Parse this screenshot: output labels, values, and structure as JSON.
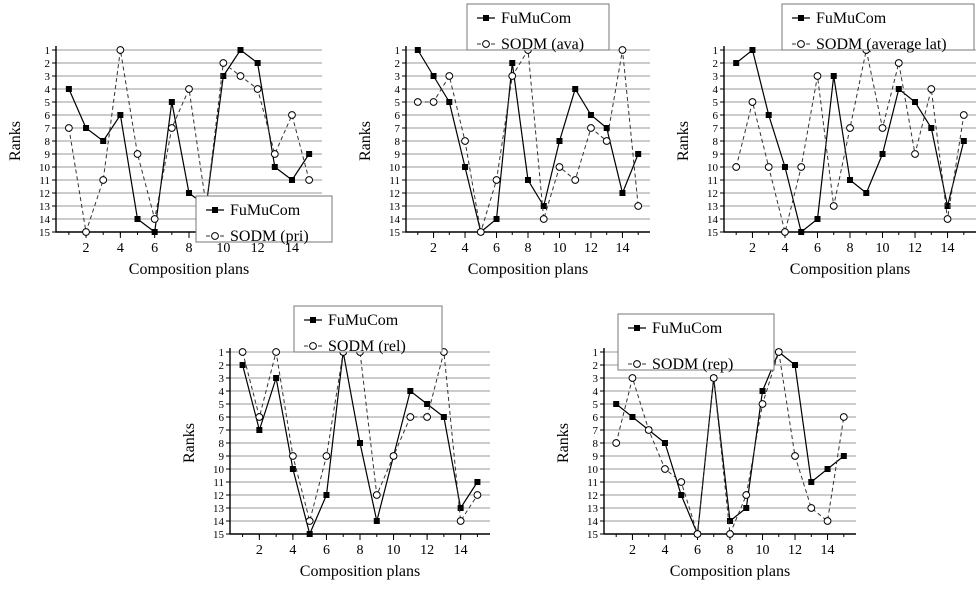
{
  "chart_data": [
    {
      "type": "line",
      "xlabel": "Composition plans",
      "ylabel": "Ranks",
      "x": [
        1,
        2,
        3,
        4,
        5,
        6,
        7,
        8,
        9,
        10,
        11,
        12,
        13,
        14,
        15
      ],
      "xticks": [
        2,
        4,
        6,
        8,
        10,
        12,
        14
      ],
      "yticks": [
        1,
        2,
        3,
        4,
        5,
        6,
        7,
        8,
        9,
        10,
        11,
        12,
        13,
        14,
        15
      ],
      "ylim": [
        15,
        1
      ],
      "y_inverted": true,
      "grid": "horizontal",
      "legend_position": "bottom-right",
      "series": [
        {
          "name": "FuMuCom",
          "marker": "filled-square",
          "line": "solid",
          "values": [
            4,
            7,
            8,
            6,
            14,
            15,
            5,
            12,
            13,
            3,
            1,
            2,
            10,
            11,
            9
          ]
        },
        {
          "name": "SODM (pri)",
          "marker": "open-circle",
          "line": "dashed",
          "values": [
            7,
            15,
            11,
            1,
            9,
            14,
            7,
            4,
            13,
            2,
            3,
            4,
            9,
            6,
            11
          ]
        }
      ]
    },
    {
      "type": "line",
      "xlabel": "Composition plans",
      "ylabel": "Ranks",
      "x": [
        1,
        2,
        3,
        4,
        5,
        6,
        7,
        8,
        9,
        10,
        11,
        12,
        13,
        14,
        15
      ],
      "xticks": [
        2,
        4,
        6,
        8,
        10,
        12,
        14
      ],
      "yticks": [
        1,
        2,
        3,
        4,
        5,
        6,
        7,
        8,
        9,
        10,
        11,
        12,
        13,
        14,
        15
      ],
      "ylim": [
        15,
        1
      ],
      "y_inverted": true,
      "grid": "horizontal",
      "legend_position": "top-left",
      "series": [
        {
          "name": "FuMuCom",
          "marker": "filled-square",
          "line": "solid",
          "values": [
            1,
            3,
            5,
            10,
            15,
            14,
            2,
            11,
            13,
            8,
            4,
            6,
            7,
            12,
            9
          ]
        },
        {
          "name": "SODM (ava)",
          "marker": "open-circle",
          "line": "dashed",
          "values": [
            5,
            5,
            3,
            8,
            15,
            11,
            3,
            1,
            14,
            10,
            11,
            7,
            8,
            1,
            13
          ]
        }
      ]
    },
    {
      "type": "line",
      "xlabel": "Composition plans",
      "ylabel": "Ranks",
      "x": [
        1,
        2,
        3,
        4,
        5,
        6,
        7,
        8,
        9,
        10,
        11,
        12,
        13,
        14,
        15
      ],
      "xticks": [
        2,
        4,
        6,
        8,
        10,
        12,
        14
      ],
      "yticks": [
        1,
        2,
        3,
        4,
        5,
        6,
        7,
        8,
        9,
        10,
        11,
        12,
        13,
        14,
        15
      ],
      "ylim": [
        15,
        1
      ],
      "y_inverted": true,
      "grid": "horizontal",
      "legend_position": "top-right",
      "series": [
        {
          "name": "FuMuCom",
          "marker": "filled-square",
          "line": "solid",
          "values": [
            2,
            1,
            6,
            10,
            15,
            14,
            3,
            11,
            12,
            9,
            4,
            5,
            7,
            13,
            8
          ]
        },
        {
          "name": "SODM (average lat)",
          "marker": "open-circle",
          "line": "dashed",
          "values": [
            10,
            5,
            10,
            15,
            10,
            3,
            13,
            7,
            1,
            7,
            2,
            9,
            4,
            14,
            6
          ]
        }
      ]
    },
    {
      "type": "line",
      "xlabel": "Composition plans",
      "ylabel": "Ranks",
      "x": [
        1,
        2,
        3,
        4,
        5,
        6,
        7,
        8,
        9,
        10,
        11,
        12,
        13,
        14,
        15
      ],
      "xticks": [
        2,
        4,
        6,
        8,
        10,
        12,
        14
      ],
      "yticks": [
        1,
        2,
        3,
        4,
        5,
        6,
        7,
        8,
        9,
        10,
        11,
        12,
        13,
        14,
        15
      ],
      "ylim": [
        15,
        1
      ],
      "y_inverted": true,
      "grid": "horizontal",
      "legend_position": "top-left",
      "series": [
        {
          "name": "FuMuCom",
          "marker": "filled-square",
          "line": "solid",
          "values": [
            2,
            7,
            3,
            10,
            15,
            12,
            1,
            8,
            14,
            9,
            4,
            5,
            6,
            13,
            11
          ]
        },
        {
          "name": "SODM (rel)",
          "marker": "open-circle",
          "line": "dashed",
          "values": [
            1,
            6,
            1,
            9,
            14,
            9,
            1,
            1,
            12,
            9,
            6,
            6,
            1,
            14,
            12
          ]
        }
      ]
    },
    {
      "type": "line",
      "xlabel": "Composition plans",
      "ylabel": "Ranks",
      "x": [
        1,
        2,
        3,
        4,
        5,
        6,
        7,
        8,
        9,
        10,
        11,
        12,
        13,
        14,
        15
      ],
      "xticks": [
        2,
        4,
        6,
        8,
        10,
        12,
        14
      ],
      "yticks": [
        1,
        2,
        3,
        4,
        5,
        6,
        7,
        8,
        9,
        10,
        11,
        12,
        13,
        14,
        15
      ],
      "ylim": [
        15,
        1
      ],
      "y_inverted": true,
      "grid": "horizontal",
      "legend_position": "top-left",
      "series": [
        {
          "name": "FuMuCom",
          "marker": "filled-square",
          "line": "solid",
          "values": [
            5,
            6,
            7,
            8,
            12,
            15,
            3,
            14,
            13,
            4,
            1,
            2,
            11,
            10,
            9
          ]
        },
        {
          "name": "SODM (rep)",
          "marker": "open-circle",
          "line": "dashed",
          "values": [
            8,
            3,
            7,
            10,
            11,
            15,
            3,
            15,
            12,
            5,
            1,
            9,
            13,
            14,
            6
          ]
        }
      ]
    }
  ]
}
